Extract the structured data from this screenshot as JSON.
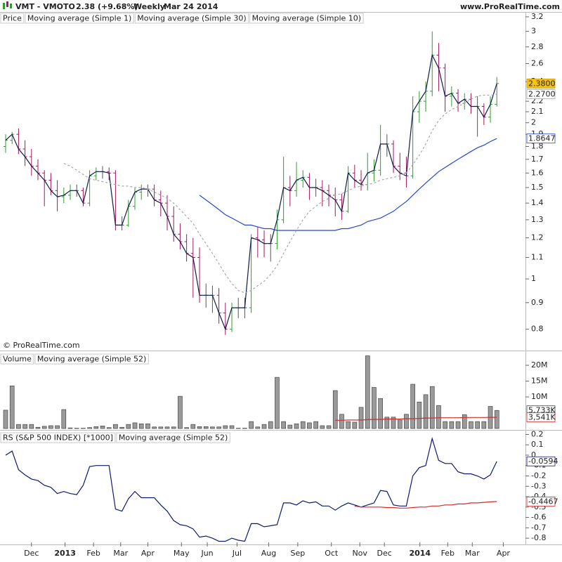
{
  "header": {
    "symbol": "VMT - VMOTO",
    "quote": "2.38 (+9.68%)",
    "period": "Weekly",
    "date": "Mar 24 2014",
    "site": "www.ProRealTime.com"
  },
  "copyright": "© ProRealTime.com",
  "x_axis": {
    "xlim": [
      -0.87,
      80.43
    ],
    "xticks": [
      {
        "value": 4.0,
        "label": "Dec"
      },
      {
        "value": 9.2,
        "label": "2013",
        "bold": true
      },
      {
        "value": 13.6,
        "label": "Feb"
      },
      {
        "value": 17.8,
        "label": "Mar"
      },
      {
        "value": 22.0,
        "label": "Apr"
      },
      {
        "value": 27.2,
        "label": "May"
      },
      {
        "value": 31.2,
        "label": "Jun"
      },
      {
        "value": 35.8,
        "label": "Jul"
      },
      {
        "value": 40.7,
        "label": "Aug"
      },
      {
        "value": 45.2,
        "label": "Sep"
      },
      {
        "value": 50.4,
        "label": "Oct"
      },
      {
        "value": 54.8,
        "label": "Nov"
      },
      {
        "value": 58.6,
        "label": "Dec"
      },
      {
        "value": 64.1,
        "label": "2014",
        "bold": true
      },
      {
        "value": 68.4,
        "label": "Feb"
      },
      {
        "value": 72.2,
        "label": "Mar"
      },
      {
        "value": 77.0,
        "label": "Apr"
      }
    ]
  },
  "chart_data": [
    {
      "type": "ohlc",
      "title": "Price",
      "title_color": "#222222",
      "log_scale": true,
      "up_color": "#2f9b2f",
      "down_color": "#a3175c",
      "ylim": [
        0.73,
        3.27
      ],
      "yticks": [
        3.2,
        3,
        2.8,
        2.6,
        2.4,
        2.2,
        2.1,
        2,
        1.9,
        1.8,
        1.7,
        1.6,
        1.5,
        1.4,
        1.3,
        1.2,
        1.1,
        1,
        0.9,
        0.8
      ],
      "open": [
        1.8,
        1.85,
        1.9,
        1.78,
        1.72,
        1.65,
        1.6,
        1.55,
        1.48,
        1.44,
        1.45,
        1.48,
        1.48,
        1.4,
        1.58,
        1.61,
        1.61,
        1.6,
        1.27,
        1.27,
        1.38,
        1.47,
        1.49,
        1.49,
        1.42,
        1.4,
        1.32,
        1.22,
        1.18,
        1.12,
        1.1,
        0.93,
        0.93,
        0.93,
        0.86,
        0.8,
        0.88,
        0.88,
        0.88,
        1.2,
        1.19,
        1.17,
        1.17,
        1.3,
        1.5,
        1.48,
        1.55,
        1.57,
        1.5,
        1.5,
        1.48,
        1.45,
        1.42,
        1.35,
        1.6,
        1.55,
        1.52,
        1.6,
        1.62,
        1.82,
        1.82,
        1.65,
        1.6,
        1.58,
        2.1,
        2.2,
        2.3,
        2.7,
        2.55,
        2.25,
        2.28,
        2.18,
        2.22,
        2.15,
        2.15,
        2.05,
        2.17
      ],
      "high": [
        1.9,
        1.92,
        1.95,
        1.85,
        1.78,
        1.7,
        1.62,
        1.6,
        1.55,
        1.5,
        1.52,
        1.52,
        1.5,
        1.62,
        1.64,
        1.65,
        1.64,
        1.62,
        1.32,
        1.42,
        1.5,
        1.52,
        1.52,
        1.52,
        1.48,
        1.45,
        1.38,
        1.28,
        1.22,
        1.2,
        1.15,
        0.98,
        0.97,
        0.96,
        0.9,
        0.9,
        0.92,
        0.92,
        1.22,
        1.26,
        1.24,
        1.22,
        1.36,
        1.72,
        1.58,
        1.68,
        1.62,
        1.6,
        1.56,
        1.55,
        1.52,
        1.5,
        1.46,
        1.65,
        1.66,
        1.62,
        1.75,
        1.7,
        1.98,
        1.9,
        1.85,
        1.75,
        1.72,
        2.25,
        2.3,
        2.4,
        3.0,
        2.85,
        2.6,
        2.35,
        2.32,
        2.28,
        2.28,
        2.25,
        2.18,
        2.25,
        2.45
      ],
      "low": [
        1.75,
        1.82,
        1.74,
        1.65,
        1.58,
        1.55,
        1.38,
        1.45,
        1.35,
        1.4,
        1.42,
        1.44,
        1.38,
        1.38,
        1.55,
        1.56,
        1.55,
        1.24,
        1.24,
        1.26,
        1.36,
        1.42,
        1.44,
        1.38,
        1.32,
        1.24,
        1.18,
        1.14,
        1.08,
        0.92,
        0.9,
        0.88,
        0.86,
        0.82,
        0.78,
        0.79,
        0.84,
        0.84,
        0.86,
        1.1,
        1.1,
        1.08,
        1.14,
        1.28,
        1.38,
        1.44,
        1.5,
        1.42,
        1.44,
        1.38,
        1.38,
        1.32,
        1.3,
        1.34,
        1.5,
        1.48,
        1.48,
        1.54,
        1.58,
        1.72,
        1.6,
        1.55,
        1.5,
        1.56,
        2.0,
        2.1,
        2.25,
        2.3,
        2.1,
        2.15,
        2.1,
        2.12,
        2.08,
        1.88,
        1.98,
        2.0,
        2.15
      ],
      "close": [
        1.85,
        1.9,
        1.78,
        1.72,
        1.65,
        1.6,
        1.55,
        1.48,
        1.44,
        1.45,
        1.48,
        1.48,
        1.4,
        1.58,
        1.61,
        1.61,
        1.6,
        1.27,
        1.27,
        1.38,
        1.47,
        1.49,
        1.49,
        1.42,
        1.4,
        1.32,
        1.22,
        1.18,
        1.12,
        1.1,
        0.93,
        0.93,
        0.93,
        0.86,
        0.8,
        0.88,
        0.88,
        0.88,
        1.2,
        1.19,
        1.17,
        1.17,
        1.3,
        1.5,
        1.48,
        1.55,
        1.57,
        1.5,
        1.5,
        1.48,
        1.45,
        1.42,
        1.35,
        1.6,
        1.55,
        1.52,
        1.6,
        1.62,
        1.82,
        1.82,
        1.65,
        1.6,
        1.58,
        2.1,
        2.2,
        2.3,
        2.7,
        2.55,
        2.25,
        2.28,
        2.18,
        2.22,
        2.15,
        2.15,
        2.05,
        2.17,
        2.38
      ],
      "series": [
        {
          "name": "Moving average (Simple 1)",
          "color": "#0d1a4d",
          "label_fill": "#f5c21b",
          "last_value_label": "2.3800",
          "values": [
            1.85,
            1.9,
            1.78,
            1.72,
            1.65,
            1.6,
            1.55,
            1.48,
            1.44,
            1.45,
            1.48,
            1.48,
            1.4,
            1.58,
            1.61,
            1.61,
            1.6,
            1.27,
            1.27,
            1.38,
            1.47,
            1.49,
            1.49,
            1.42,
            1.4,
            1.32,
            1.22,
            1.18,
            1.12,
            1.1,
            0.93,
            0.93,
            0.93,
            0.86,
            0.8,
            0.88,
            0.88,
            0.88,
            1.2,
            1.19,
            1.17,
            1.17,
            1.3,
            1.5,
            1.48,
            1.55,
            1.57,
            1.5,
            1.5,
            1.48,
            1.45,
            1.42,
            1.35,
            1.6,
            1.55,
            1.52,
            1.6,
            1.62,
            1.82,
            1.82,
            1.65,
            1.6,
            1.58,
            2.1,
            2.2,
            2.3,
            2.7,
            2.55,
            2.25,
            2.28,
            2.18,
            2.22,
            2.15,
            2.15,
            2.05,
            2.17,
            2.38
          ]
        },
        {
          "name": "Moving average (Simple 30)",
          "color": "#2647d0",
          "last_value_label": "1.8647",
          "values": [
            null,
            null,
            null,
            null,
            null,
            null,
            null,
            null,
            null,
            null,
            null,
            null,
            null,
            null,
            null,
            null,
            null,
            null,
            null,
            null,
            null,
            null,
            null,
            null,
            null,
            null,
            null,
            null,
            null,
            null,
            1.45,
            1.42,
            1.39,
            1.36,
            1.33,
            1.31,
            1.29,
            1.27,
            1.27,
            1.26,
            1.25,
            1.25,
            1.24,
            1.24,
            1.24,
            1.24,
            1.24,
            1.24,
            1.24,
            1.24,
            1.24,
            1.24,
            1.25,
            1.25,
            1.26,
            1.27,
            1.29,
            1.3,
            1.31,
            1.33,
            1.35,
            1.38,
            1.41,
            1.45,
            1.49,
            1.53,
            1.57,
            1.61,
            1.64,
            1.67,
            1.7,
            1.73,
            1.76,
            1.79,
            1.81,
            1.84,
            1.8647
          ]
        },
        {
          "name": "Moving average (Simple 10)",
          "color": "#a8a8a8",
          "dashed": true,
          "last_value_label": "2.2700",
          "values": [
            null,
            null,
            null,
            null,
            null,
            null,
            null,
            null,
            null,
            1.67,
            1.65,
            1.62,
            1.59,
            1.56,
            1.55,
            1.54,
            1.53,
            1.52,
            1.51,
            1.51,
            1.5,
            1.5,
            1.49,
            1.47,
            1.45,
            1.43,
            1.4,
            1.36,
            1.32,
            1.28,
            1.22,
            1.17,
            1.12,
            1.07,
            1.02,
            0.98,
            0.95,
            0.94,
            0.95,
            0.97,
            0.99,
            1.02,
            1.06,
            1.12,
            1.18,
            1.24,
            1.3,
            1.35,
            1.38,
            1.41,
            1.43,
            1.45,
            1.46,
            1.48,
            1.5,
            1.51,
            1.52,
            1.53,
            1.55,
            1.56,
            1.57,
            1.58,
            1.6,
            1.66,
            1.73,
            1.82,
            1.93,
            2.02,
            2.08,
            2.12,
            2.15,
            2.18,
            2.22,
            2.25,
            2.26,
            2.26,
            2.27
          ]
        }
      ]
    },
    {
      "type": "bar",
      "title": "Volume",
      "title_color": "#999999",
      "color": "#9a9a9a",
      "last_value_label": "5,733K",
      "ylim": [
        0,
        24000000
      ],
      "yticks": [
        {
          "value": 20000000,
          "label": "20M"
        },
        {
          "value": 15000000,
          "label": "15M"
        },
        {
          "value": 10000000,
          "label": "10M"
        }
      ],
      "values": [
        5800000,
        13500000,
        1300000,
        1300000,
        1300000,
        400000,
        700000,
        900000,
        900000,
        6000000,
        200000,
        100000,
        100000,
        300000,
        600000,
        800000,
        300000,
        1300000,
        400000,
        1300000,
        1800000,
        1500000,
        1500000,
        500000,
        500000,
        500000,
        500000,
        10200000,
        300000,
        1300000,
        600000,
        600000,
        500000,
        500000,
        900000,
        900000,
        100000,
        100000,
        2200000,
        500000,
        1300000,
        2200000,
        16200000,
        2200000,
        1100000,
        1500000,
        2200000,
        1800000,
        2200000,
        900000,
        900000,
        12000000,
        4500000,
        2200000,
        2000000,
        6700000,
        23000000,
        13000000,
        9500000,
        3600000,
        3600000,
        2700000,
        4500000,
        14000000,
        8400000,
        10700000,
        13300000,
        7300000,
        2200000,
        2200000,
        2200000,
        4400000,
        2200000,
        2200000,
        2200000,
        7000000,
        5733000
      ],
      "series": [
        {
          "name": "Moving average (Simple 52)",
          "color": "#d22b2b",
          "last_value_label": "3,541K",
          "values": [
            null,
            null,
            null,
            null,
            null,
            null,
            null,
            null,
            null,
            null,
            null,
            null,
            null,
            null,
            null,
            null,
            null,
            null,
            null,
            null,
            null,
            null,
            null,
            null,
            null,
            null,
            null,
            null,
            null,
            null,
            null,
            null,
            null,
            null,
            null,
            null,
            null,
            null,
            null,
            null,
            null,
            null,
            null,
            null,
            null,
            null,
            null,
            null,
            null,
            null,
            null,
            2600000,
            2600000,
            2700000,
            2700000,
            2700000,
            2800000,
            2900000,
            2900000,
            3000000,
            3000000,
            3000000,
            3100000,
            3100000,
            3200000,
            3300000,
            3300000,
            3400000,
            3400000,
            3400000,
            3400000,
            3500000,
            3500000,
            3500000,
            3500000,
            3540000,
            3541000
          ]
        }
      ]
    },
    {
      "type": "line",
      "title_color": "#0d1a6e",
      "ylim": [
        -0.84,
        0.23
      ],
      "yticks": [
        0.2,
        0.1,
        0,
        -0.1,
        -0.2,
        -0.3,
        -0.4,
        -0.5,
        -0.6,
        -0.7,
        -0.8
      ],
      "series": [
        {
          "name": "RS (S&P 500 INDEX) [*1000]",
          "color": "#0d1a6e",
          "last_value_label": "-0.0594",
          "values": [
            0,
            0.04,
            -0.14,
            -0.19,
            -0.23,
            -0.245,
            -0.29,
            -0.31,
            -0.37,
            -0.35,
            -0.37,
            -0.38,
            -0.29,
            -0.11,
            -0.1,
            -0.1,
            -0.1,
            -0.52,
            -0.54,
            -0.42,
            -0.35,
            -0.41,
            -0.41,
            -0.41,
            -0.48,
            -0.54,
            -0.63,
            -0.67,
            -0.68,
            -0.71,
            -0.79,
            -0.78,
            -0.8,
            -0.83,
            -0.83,
            -0.8,
            -0.82,
            -0.83,
            -0.66,
            -0.66,
            -0.69,
            -0.68,
            -0.67,
            -0.46,
            -0.46,
            -0.48,
            -0.44,
            -0.46,
            -0.45,
            -0.49,
            -0.49,
            -0.53,
            -0.49,
            -0.46,
            -0.48,
            -0.5,
            -0.48,
            -0.46,
            -0.34,
            -0.35,
            -0.48,
            -0.49,
            -0.49,
            -0.2,
            -0.12,
            -0.1,
            0.16,
            -0.05,
            -0.08,
            -0.08,
            -0.16,
            -0.18,
            -0.18,
            -0.2,
            -0.23,
            -0.19,
            -0.0594
          ]
        },
        {
          "name": "Moving average (Simple 52)",
          "color": "#d22b2b",
          "last_value_label": "-0.4467",
          "values": [
            null,
            null,
            null,
            null,
            null,
            null,
            null,
            null,
            null,
            null,
            null,
            null,
            null,
            null,
            null,
            null,
            null,
            null,
            null,
            null,
            null,
            null,
            null,
            null,
            null,
            null,
            null,
            null,
            null,
            null,
            null,
            null,
            null,
            null,
            null,
            null,
            null,
            null,
            null,
            null,
            null,
            null,
            null,
            null,
            null,
            null,
            null,
            null,
            null,
            null,
            null,
            null,
            null,
            null,
            -0.49,
            -0.5,
            -0.5,
            -0.5,
            -0.5,
            -0.505,
            -0.505,
            -0.51,
            -0.51,
            -0.505,
            -0.5,
            -0.5,
            -0.49,
            -0.49,
            -0.48,
            -0.48,
            -0.47,
            -0.47,
            -0.46,
            -0.46,
            -0.455,
            -0.45,
            -0.4467
          ]
        }
      ]
    }
  ]
}
